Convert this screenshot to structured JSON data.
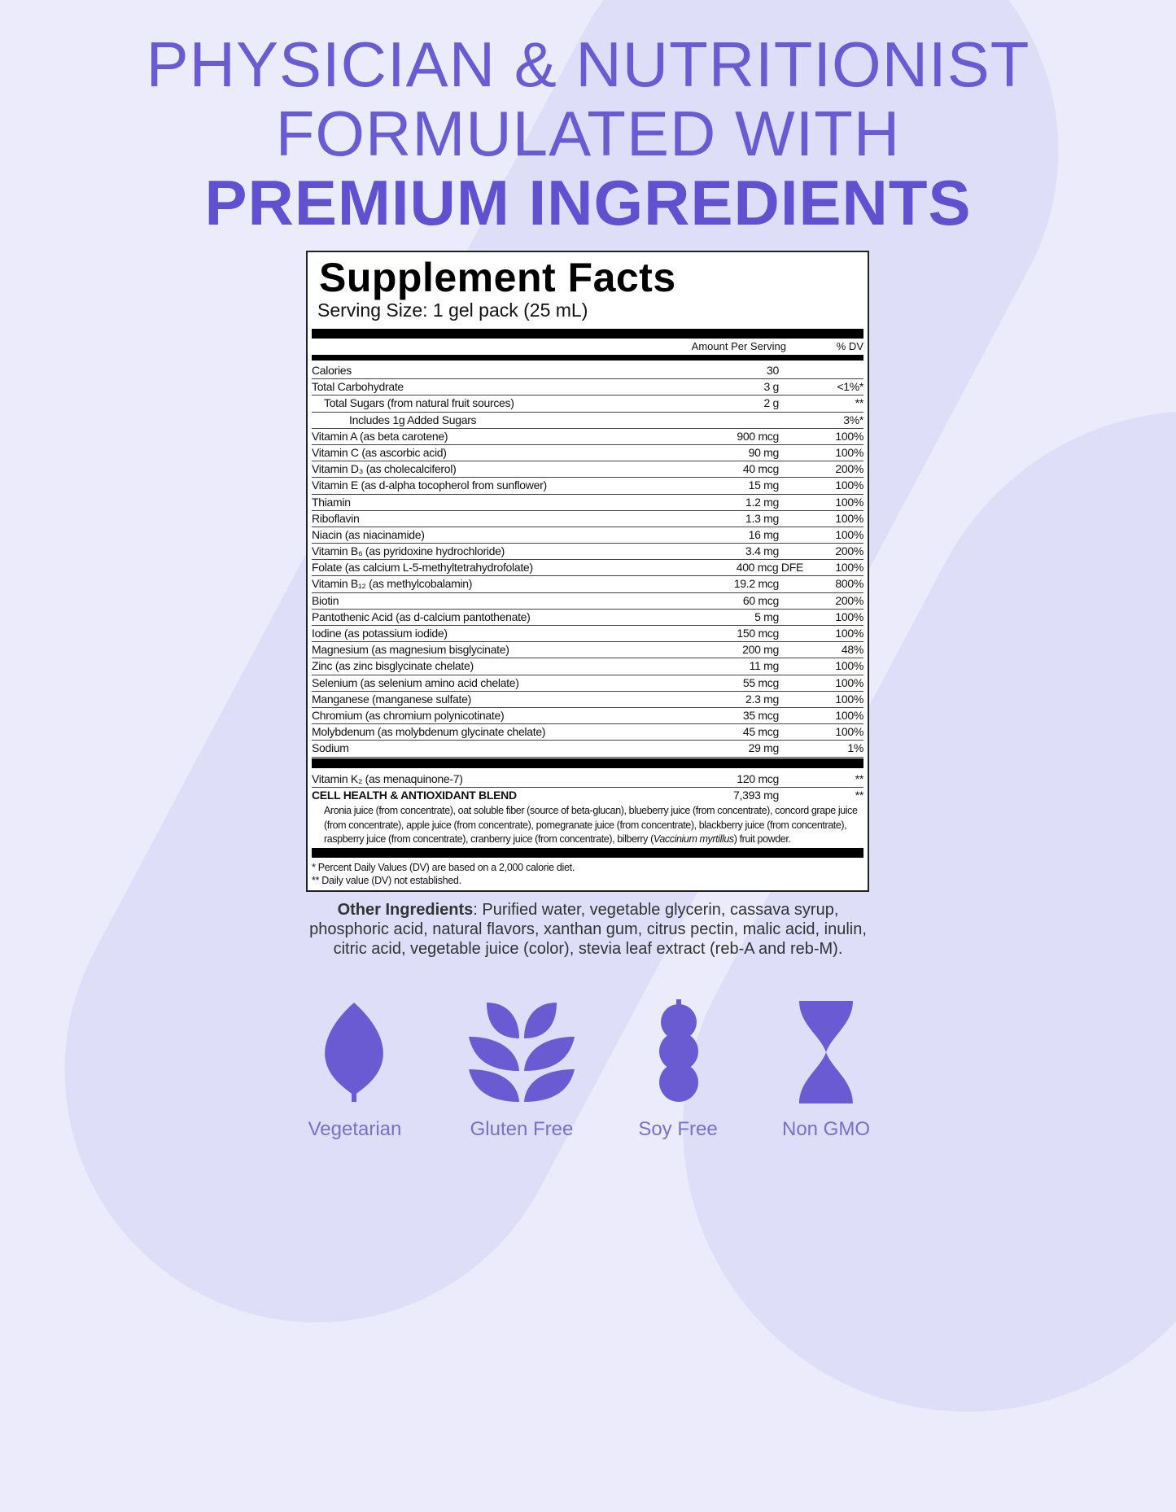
{
  "headline": {
    "line1": "PHYSICIAN & NUTRITIONIST",
    "line2": "FORMULATED WITH",
    "line3": "PREMIUM INGREDIENTS"
  },
  "colors": {
    "accent": "#6150cf",
    "background": "#ebebfb"
  },
  "facts": {
    "title": "Supplement Facts",
    "serving": "Serving Size: 1 gel pack (25 mL)",
    "col_amount": "Amount Per Serving",
    "col_dv": "% DV",
    "rows": [
      {
        "name": "Calories",
        "amount": "30",
        "dv": ""
      },
      {
        "name": "Total Carbohydrate",
        "amount": "3 g",
        "dv": "<1%*"
      },
      {
        "name": "Total Sugars (from natural fruit sources)",
        "amount": "2 g",
        "dv": "**",
        "indent": 1
      },
      {
        "name": "Includes 1g Added Sugars",
        "amount": "",
        "dv": "3%*",
        "indent": 2
      },
      {
        "name": "Vitamin A (as beta carotene)",
        "amount": "900 mcg",
        "dv": "100%"
      },
      {
        "name": "Vitamin C (as ascorbic acid)",
        "amount": "90 mg",
        "dv": "100%"
      },
      {
        "name": "Vitamin D₃ (as cholecalciferol)",
        "amount": "40 mcg",
        "dv": "200%"
      },
      {
        "name": "Vitamin E (as d-alpha tocopherol from sunflower)",
        "amount": "15 mg",
        "dv": "100%"
      },
      {
        "name": "Thiamin",
        "amount": "1.2 mg",
        "dv": "100%"
      },
      {
        "name": "Riboflavin",
        "amount": "1.3 mg",
        "dv": "100%"
      },
      {
        "name": "Niacin (as niacinamide)",
        "amount": "16 mg",
        "dv": "100%"
      },
      {
        "name": "Vitamin B₆ (as pyridoxine hydrochloride)",
        "amount": "3.4 mg",
        "dv": "200%"
      },
      {
        "name": "Folate (as calcium L-5-methyltetrahydrofolate)",
        "amount": "400 mcg DFE",
        "dv": "100%",
        "wide": true
      },
      {
        "name": "Vitamin B₁₂ (as methylcobalamin)",
        "amount": "19.2 mcg",
        "dv": "800%"
      },
      {
        "name": "Biotin",
        "amount": "60 mcg",
        "dv": "200%"
      },
      {
        "name": "Pantothenic Acid (as d-calcium pantothenate)",
        "amount": "5 mg",
        "dv": "100%"
      },
      {
        "name": "Iodine (as potassium iodide)",
        "amount": "150 mcg",
        "dv": "100%"
      },
      {
        "name": "Magnesium (as magnesium bisglycinate)",
        "amount": "200 mg",
        "dv": "48%"
      },
      {
        "name": "Zinc (as zinc bisglycinate chelate)",
        "amount": "11 mg",
        "dv": "100%"
      },
      {
        "name": "Selenium (as selenium amino acid chelate)",
        "amount": "55 mcg",
        "dv": "100%"
      },
      {
        "name": "Manganese (manganese sulfate)",
        "amount": "2.3 mg",
        "dv": "100%"
      },
      {
        "name": "Chromium (as chromium polynicotinate)",
        "amount": "35 mcg",
        "dv": "100%"
      },
      {
        "name": "Molybdenum (as molybdenum glycinate chelate)",
        "amount": "45 mcg",
        "dv": "100%"
      },
      {
        "name": "Sodium",
        "amount": "29 mg",
        "dv": "1%"
      }
    ],
    "k2": {
      "name": "Vitamin K₂ (as menaquinone-7)",
      "amount": "120 mcg",
      "dv": "**"
    },
    "blend": {
      "name": "CELL HEALTH & ANTIOXIDANT BLEND",
      "amount": "7,393 mg",
      "dv": "**",
      "text_a": "Aronia juice (from concentrate), oat soluble fiber (source of beta-glucan), blueberry juice (from concentrate), concord grape juice (from concentrate), apple juice (from concentrate), pomegranate juice (from concentrate), blackberry juice (from concentrate), raspberry juice (from concentrate), cranberry juice (from concentrate), bilberry (",
      "text_italic": "Vaccinium myrtillus",
      "text_b": ") fruit powder."
    },
    "foot1": "* Percent Daily Values (DV) are based on a 2,000 calorie diet.",
    "foot2": "** Daily value (DV) not established."
  },
  "other": {
    "label": "Other Ingredients",
    "text": ": Purified water, vegetable glycerin, cassava syrup, phosphoric acid, natural flavors, xanthan gum, citrus pectin, malic acid, inulin, citric acid, vegetable juice (color), stevia leaf extract (reb-A and reb-M)."
  },
  "badges": [
    {
      "icon": "leaf-icon",
      "label": "Vegetarian"
    },
    {
      "icon": "wheat-icon",
      "label": "Gluten Free"
    },
    {
      "icon": "soybean-icon",
      "label": "Soy Free"
    },
    {
      "icon": "dna-icon",
      "label": "Non GMO"
    }
  ]
}
